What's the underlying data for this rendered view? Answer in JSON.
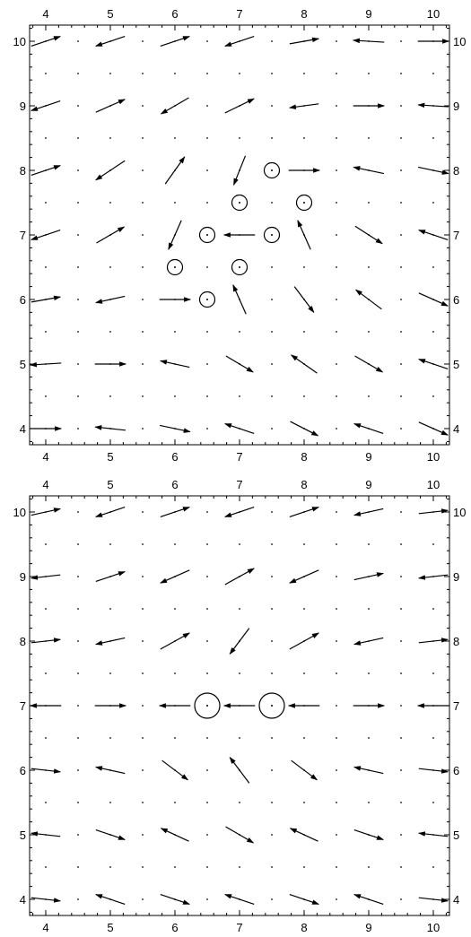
{
  "chart_data": [
    {
      "type": "vector-field",
      "xlim": [
        3.75,
        10.25
      ],
      "ylim": [
        3.75,
        10.25
      ],
      "xticks": [
        "4",
        "5",
        "6",
        "7",
        "8",
        "9",
        "10"
      ],
      "yticks": [
        "4",
        "5",
        "6",
        "7",
        "8",
        "9",
        "10"
      ],
      "point_vortices": [
        {
          "x": 7.5,
          "y": 8.0,
          "size": 1
        },
        {
          "x": 7.0,
          "y": 7.5,
          "size": 1
        },
        {
          "x": 8.0,
          "y": 7.5,
          "size": 1
        },
        {
          "x": 6.5,
          "y": 7.0,
          "size": 1
        },
        {
          "x": 7.5,
          "y": 7.0,
          "size": 1
        },
        {
          "x": 6.0,
          "y": 6.5,
          "size": 1
        },
        {
          "x": 7.0,
          "y": 6.5,
          "size": 1
        },
        {
          "x": 6.5,
          "y": 6.0,
          "size": 1
        }
      ],
      "vectors": [
        {
          "x": 4,
          "y": 10,
          "u": 0.45,
          "v": 0.15
        },
        {
          "x": 5,
          "y": 10,
          "u": -0.45,
          "v": -0.15
        },
        {
          "x": 6,
          "y": 10,
          "u": 0.45,
          "v": 0.15
        },
        {
          "x": 7,
          "y": 10,
          "u": -0.45,
          "v": -0.15
        },
        {
          "x": 8,
          "y": 10,
          "u": 0.45,
          "v": 0.08
        },
        {
          "x": 9,
          "y": 10,
          "u": -0.48,
          "v": 0.03
        },
        {
          "x": 10,
          "y": 10,
          "u": 0.48,
          "v": 0.0
        },
        {
          "x": 4,
          "y": 9,
          "u": -0.45,
          "v": -0.15
        },
        {
          "x": 5,
          "y": 9,
          "u": 0.45,
          "v": 0.2
        },
        {
          "x": 6,
          "y": 9,
          "u": -0.43,
          "v": -0.25
        },
        {
          "x": 7,
          "y": 9,
          "u": 0.45,
          "v": 0.22
        },
        {
          "x": 8,
          "y": 9,
          "u": -0.45,
          "v": -0.06
        },
        {
          "x": 9,
          "y": 9,
          "u": 0.48,
          "v": 0.0
        },
        {
          "x": 10,
          "y": 9,
          "u": -0.47,
          "v": 0.03
        },
        {
          "x": 4,
          "y": 8,
          "u": 0.45,
          "v": 0.15
        },
        {
          "x": 5,
          "y": 8,
          "u": -0.45,
          "v": -0.3
        },
        {
          "x": 6,
          "y": 8,
          "u": 0.3,
          "v": 0.42
        },
        {
          "x": 7,
          "y": 8,
          "u": -0.18,
          "v": -0.45
        },
        {
          "x": 8,
          "y": 8,
          "u": 0.48,
          "v": 0.0
        },
        {
          "x": 9,
          "y": 8,
          "u": -0.47,
          "v": 0.1
        },
        {
          "x": 10,
          "y": 8,
          "u": 0.47,
          "v": -0.1
        },
        {
          "x": 4,
          "y": 7,
          "u": -0.45,
          "v": -0.15
        },
        {
          "x": 5,
          "y": 7,
          "u": 0.43,
          "v": 0.25
        },
        {
          "x": 6,
          "y": 7,
          "u": -0.2,
          "v": -0.45
        },
        {
          "x": 7,
          "y": 7,
          "u": -0.48,
          "v": 0.0
        },
        {
          "x": 8,
          "y": 7,
          "u": -0.2,
          "v": 0.45
        },
        {
          "x": 9,
          "y": 7,
          "u": 0.42,
          "v": -0.27
        },
        {
          "x": 10,
          "y": 7,
          "u": -0.45,
          "v": 0.15
        },
        {
          "x": 4,
          "y": 6,
          "u": 0.45,
          "v": 0.08
        },
        {
          "x": 5,
          "y": 6,
          "u": -0.45,
          "v": -0.1
        },
        {
          "x": 6,
          "y": 6,
          "u": 0.48,
          "v": 0.0
        },
        {
          "x": 7,
          "y": 6,
          "u": -0.2,
          "v": 0.45
        },
        {
          "x": 8,
          "y": 6,
          "u": 0.3,
          "v": -0.4
        },
        {
          "x": 9,
          "y": 6,
          "u": -0.4,
          "v": 0.3
        },
        {
          "x": 10,
          "y": 6,
          "u": 0.45,
          "v": -0.2
        },
        {
          "x": 4,
          "y": 5,
          "u": -0.48,
          "v": -0.03
        },
        {
          "x": 5,
          "y": 5,
          "u": 0.48,
          "v": 0.0
        },
        {
          "x": 6,
          "y": 5,
          "u": -0.45,
          "v": 0.1
        },
        {
          "x": 7,
          "y": 5,
          "u": 0.42,
          "v": -0.25
        },
        {
          "x": 8,
          "y": 5,
          "u": -0.4,
          "v": 0.28
        },
        {
          "x": 9,
          "y": 5,
          "u": 0.43,
          "v": -0.25
        },
        {
          "x": 10,
          "y": 5,
          "u": -0.45,
          "v": 0.15
        },
        {
          "x": 4,
          "y": 4,
          "u": 0.48,
          "v": 0.0
        },
        {
          "x": 5,
          "y": 4,
          "u": -0.47,
          "v": 0.05
        },
        {
          "x": 6,
          "y": 4,
          "u": 0.47,
          "v": -0.1
        },
        {
          "x": 7,
          "y": 4,
          "u": -0.45,
          "v": 0.15
        },
        {
          "x": 8,
          "y": 4,
          "u": 0.43,
          "v": -0.22
        },
        {
          "x": 9,
          "y": 4,
          "u": -0.45,
          "v": 0.15
        },
        {
          "x": 10,
          "y": 4,
          "u": 0.45,
          "v": -0.2
        }
      ]
    },
    {
      "type": "vector-field",
      "xlim": [
        3.75,
        10.25
      ],
      "ylim": [
        3.75,
        10.25
      ],
      "xticks": [
        "4",
        "5",
        "6",
        "7",
        "8",
        "9",
        "10"
      ],
      "yticks": [
        "4",
        "5",
        "6",
        "7",
        "8",
        "9",
        "10"
      ],
      "point_vortices": [
        {
          "x": 6.5,
          "y": 7.0,
          "size": 2
        },
        {
          "x": 7.5,
          "y": 7.0,
          "size": 2
        }
      ],
      "vectors": [
        {
          "x": 4,
          "y": 10,
          "u": 0.45,
          "v": 0.1
        },
        {
          "x": 5,
          "y": 10,
          "u": -0.45,
          "v": -0.15
        },
        {
          "x": 6,
          "y": 10,
          "u": 0.45,
          "v": 0.15
        },
        {
          "x": 7,
          "y": 10,
          "u": -0.45,
          "v": -0.15
        },
        {
          "x": 8,
          "y": 10,
          "u": 0.45,
          "v": 0.15
        },
        {
          "x": 9,
          "y": 10,
          "u": -0.45,
          "v": -0.1
        },
        {
          "x": 10,
          "y": 10,
          "u": 0.45,
          "v": 0.05
        },
        {
          "x": 4,
          "y": 9,
          "u": -0.45,
          "v": -0.05
        },
        {
          "x": 5,
          "y": 9,
          "u": 0.45,
          "v": 0.15
        },
        {
          "x": 6,
          "y": 9,
          "u": -0.45,
          "v": -0.2
        },
        {
          "x": 7,
          "y": 9,
          "u": 0.45,
          "v": 0.25
        },
        {
          "x": 8,
          "y": 9,
          "u": -0.45,
          "v": -0.2
        },
        {
          "x": 9,
          "y": 9,
          "u": 0.45,
          "v": 0.1
        },
        {
          "x": 10,
          "y": 9,
          "u": -0.45,
          "v": -0.05
        },
        {
          "x": 4,
          "y": 8,
          "u": 0.45,
          "v": 0.05
        },
        {
          "x": 5,
          "y": 8,
          "u": -0.45,
          "v": -0.1
        },
        {
          "x": 6,
          "y": 8,
          "u": 0.45,
          "v": 0.25
        },
        {
          "x": 7,
          "y": 8,
          "u": -0.3,
          "v": -0.4
        },
        {
          "x": 8,
          "y": 8,
          "u": 0.45,
          "v": 0.25
        },
        {
          "x": 9,
          "y": 8,
          "u": -0.45,
          "v": -0.1
        },
        {
          "x": 10,
          "y": 8,
          "u": 0.45,
          "v": 0.05
        },
        {
          "x": 4,
          "y": 7,
          "u": -0.48,
          "v": 0.0
        },
        {
          "x": 5,
          "y": 7,
          "u": 0.48,
          "v": 0.0
        },
        {
          "x": 6,
          "y": 7,
          "u": -0.48,
          "v": 0.0
        },
        {
          "x": 7,
          "y": 7,
          "u": -0.48,
          "v": 0.0
        },
        {
          "x": 8,
          "y": 7,
          "u": -0.48,
          "v": 0.0
        },
        {
          "x": 9,
          "y": 7,
          "u": 0.48,
          "v": 0.0
        },
        {
          "x": 10,
          "y": 7,
          "u": -0.48,
          "v": 0.0
        },
        {
          "x": 4,
          "y": 6,
          "u": 0.45,
          "v": -0.05
        },
        {
          "x": 5,
          "y": 6,
          "u": -0.45,
          "v": 0.1
        },
        {
          "x": 6,
          "y": 6,
          "u": 0.4,
          "v": -0.3
        },
        {
          "x": 7,
          "y": 6,
          "u": -0.3,
          "v": 0.4
        },
        {
          "x": 8,
          "y": 6,
          "u": 0.4,
          "v": -0.3
        },
        {
          "x": 9,
          "y": 6,
          "u": -0.45,
          "v": 0.1
        },
        {
          "x": 10,
          "y": 6,
          "u": 0.45,
          "v": -0.05
        },
        {
          "x": 4,
          "y": 5,
          "u": -0.45,
          "v": 0.05
        },
        {
          "x": 5,
          "y": 5,
          "u": 0.45,
          "v": -0.15
        },
        {
          "x": 6,
          "y": 5,
          "u": -0.43,
          "v": 0.2
        },
        {
          "x": 7,
          "y": 5,
          "u": 0.43,
          "v": -0.25
        },
        {
          "x": 8,
          "y": 5,
          "u": -0.43,
          "v": 0.2
        },
        {
          "x": 9,
          "y": 5,
          "u": 0.45,
          "v": -0.15
        },
        {
          "x": 10,
          "y": 5,
          "u": -0.45,
          "v": 0.05
        },
        {
          "x": 4,
          "y": 4,
          "u": 0.45,
          "v": -0.05
        },
        {
          "x": 5,
          "y": 4,
          "u": -0.45,
          "v": 0.15
        },
        {
          "x": 6,
          "y": 4,
          "u": 0.45,
          "v": -0.15
        },
        {
          "x": 7,
          "y": 4,
          "u": -0.45,
          "v": 0.15
        },
        {
          "x": 8,
          "y": 4,
          "u": 0.45,
          "v": -0.15
        },
        {
          "x": 9,
          "y": 4,
          "u": -0.45,
          "v": 0.15
        },
        {
          "x": 10,
          "y": 4,
          "u": 0.45,
          "v": -0.05
        }
      ]
    }
  ]
}
